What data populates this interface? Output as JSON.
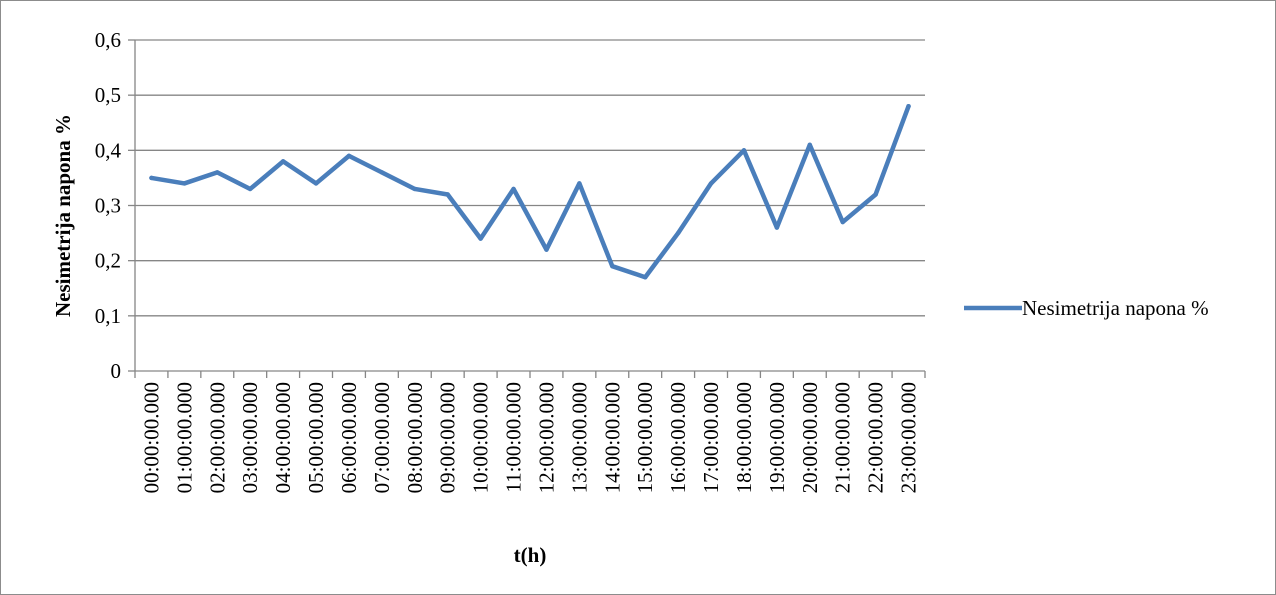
{
  "chart_data": {
    "type": "line",
    "title": "",
    "xlabel": "t(h)",
    "ylabel": "Nesimetrija napona %",
    "ylim": [
      0,
      0.6
    ],
    "yticks": [
      "0",
      "0,1",
      "0,2",
      "0,3",
      "0,4",
      "0,5",
      "0,6"
    ],
    "grid": "horizontal",
    "legend_position": "right",
    "categories": [
      "00:00:00.000",
      "01:00:00.000",
      "02:00:00.000",
      "03:00:00.000",
      "04:00:00.000",
      "05:00:00.000",
      "06:00:00.000",
      "07:00:00.000",
      "08:00:00.000",
      "09:00:00.000",
      "10:00:00.000",
      "11:00:00.000",
      "12:00:00.000",
      "13:00:00.000",
      "14:00:00.000",
      "15:00:00.000",
      "16:00:00.000",
      "17:00:00.000",
      "18:00:00.000",
      "19:00:00.000",
      "20:00:00.000",
      "21:00:00.000",
      "22:00:00.000",
      "23:00:00.000"
    ],
    "series": [
      {
        "name": "Nesimetrija napona %",
        "color": "#4a7ebb",
        "values": [
          0.35,
          0.34,
          0.36,
          0.33,
          0.38,
          0.34,
          0.39,
          0.36,
          0.33,
          0.32,
          0.24,
          0.33,
          0.22,
          0.34,
          0.19,
          0.17,
          0.25,
          0.34,
          0.4,
          0.26,
          0.41,
          0.27,
          0.32,
          0.48
        ]
      }
    ]
  }
}
